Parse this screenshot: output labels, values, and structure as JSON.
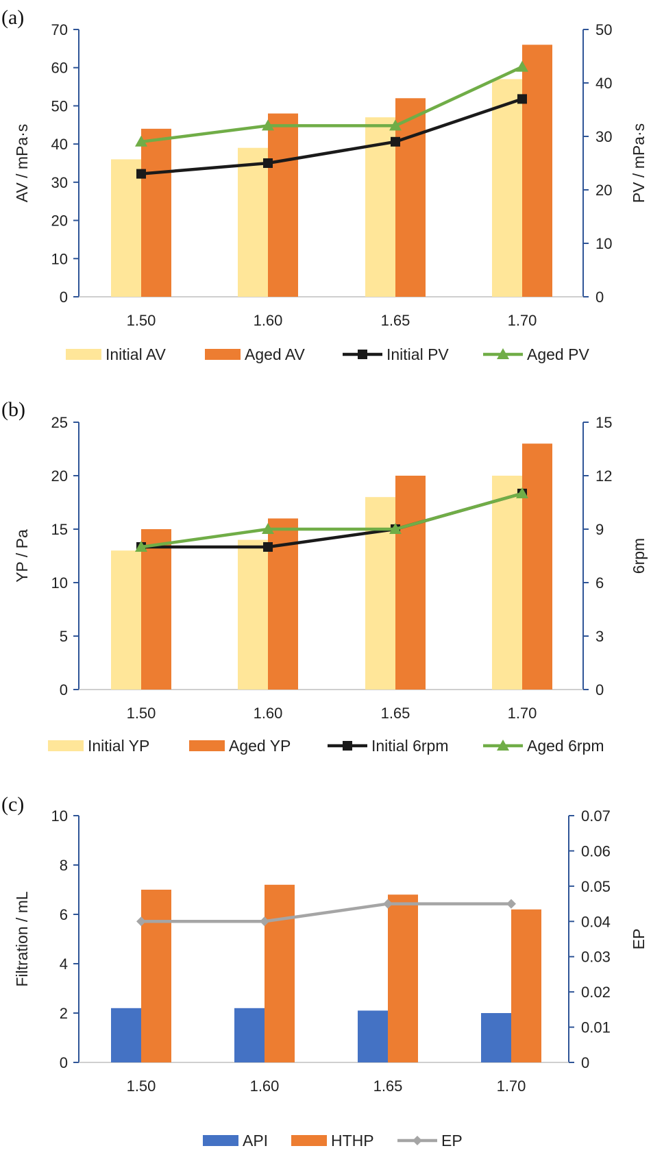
{
  "figure": {
    "panels": [
      {
        "panel_label": "(a)",
        "chart_id": "a"
      },
      {
        "panel_label": "(b)",
        "chart_id": "b"
      },
      {
        "panel_label": "(c)",
        "chart_id": "c"
      }
    ]
  },
  "colors": {
    "initial_bar": "#FFE699",
    "aged_bar": "#ED7D31",
    "api_bar": "#4472C4",
    "initial_line": "#1a1a1a",
    "aged_line": "#70AD47",
    "ep_line": "#A5A5A5",
    "axis": "#2F5597"
  },
  "chart_data": [
    {
      "id": "a",
      "type": "bar",
      "panel_label": "(a)",
      "categories": [
        "1.50",
        "1.60",
        "1.65",
        "1.70"
      ],
      "left_axis": {
        "label": "AV / mPa·s",
        "ylim": [
          0,
          70
        ],
        "ticks": [
          "0",
          "10",
          "20",
          "30",
          "40",
          "50",
          "60",
          "70"
        ],
        "step": 10
      },
      "right_axis": {
        "label": "PV / mPa·s",
        "ylim": [
          0,
          50
        ],
        "ticks": [
          "0",
          "10",
          "20",
          "30",
          "40",
          "50"
        ],
        "step": 10
      },
      "bars": [
        {
          "name": "Initial AV",
          "color_key": "initial_bar",
          "values": [
            36,
            39,
            47,
            57
          ]
        },
        {
          "name": "Aged AV",
          "color_key": "aged_bar",
          "values": [
            44,
            48,
            52,
            66
          ]
        }
      ],
      "lines": [
        {
          "name": "Initial PV",
          "color_key": "initial_line",
          "marker": "square",
          "values": [
            23,
            25,
            29,
            37
          ]
        },
        {
          "name": "Aged PV",
          "color_key": "aged_line",
          "marker": "triangle",
          "values": [
            29,
            32,
            32,
            43
          ]
        }
      ]
    },
    {
      "id": "b",
      "type": "bar",
      "panel_label": "(b)",
      "categories": [
        "1.50",
        "1.60",
        "1.65",
        "1.70"
      ],
      "left_axis": {
        "label": "YP / Pa",
        "ylim": [
          0,
          25
        ],
        "ticks": [
          "0",
          "5",
          "10",
          "15",
          "20",
          "25"
        ],
        "step": 5
      },
      "right_axis": {
        "label": "6rpm",
        "ylim": [
          0,
          15
        ],
        "ticks": [
          "0",
          "3",
          "6",
          "9",
          "12",
          "15"
        ],
        "step": 3
      },
      "bars": [
        {
          "name": "Initial YP",
          "color_key": "initial_bar",
          "values": [
            13,
            14,
            18,
            20
          ]
        },
        {
          "name": "Aged YP",
          "color_key": "aged_bar",
          "values": [
            15,
            16,
            20,
            23
          ]
        }
      ],
      "lines": [
        {
          "name": "Initial 6rpm",
          "color_key": "initial_line",
          "marker": "square",
          "values": [
            8,
            8,
            9,
            11
          ]
        },
        {
          "name": "Aged 6rpm",
          "color_key": "aged_line",
          "marker": "triangle",
          "values": [
            8,
            9,
            9,
            11
          ]
        }
      ]
    },
    {
      "id": "c",
      "type": "bar",
      "panel_label": "(c)",
      "categories": [
        "1.50",
        "1.60",
        "1.65",
        "1.70"
      ],
      "left_axis": {
        "label": "Filtration / mL",
        "ylim": [
          0,
          10
        ],
        "ticks": [
          "0",
          "2",
          "4",
          "6",
          "8",
          "10"
        ],
        "step": 2
      },
      "right_axis": {
        "label": "EP",
        "ylim": [
          0,
          0.07
        ],
        "ticks": [
          "0",
          "0.01",
          "0.02",
          "0.03",
          "0.04",
          "0.05",
          "0.06",
          "0.07"
        ],
        "step": 0.01
      },
      "bars": [
        {
          "name": "API",
          "color_key": "api_bar",
          "values": [
            2.2,
            2.2,
            2.1,
            2.0
          ]
        },
        {
          "name": "HTHP",
          "color_key": "aged_bar",
          "values": [
            7.0,
            7.2,
            6.8,
            6.2
          ]
        }
      ],
      "lines": [
        {
          "name": "EP",
          "color_key": "ep_line",
          "marker": "diamond",
          "values": [
            0.04,
            0.04,
            0.045,
            0.045
          ]
        }
      ]
    }
  ]
}
